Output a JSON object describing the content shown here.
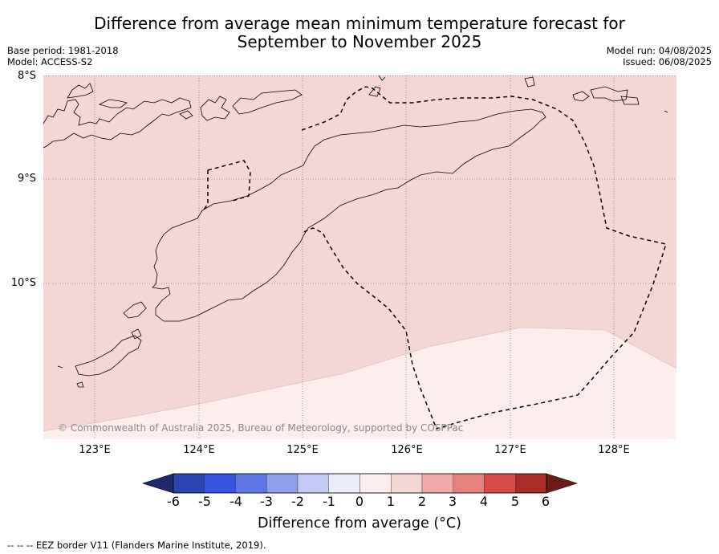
{
  "title_line1": "Difference from average mean minimum temperature forecast for",
  "title_line2": "September to November 2025",
  "base_period": "Base period: 1981-2018",
  "model": "Model: ACCESS-S2",
  "model_run": "Model run: 04/08/2025",
  "issued": "Issued: 06/08/2025",
  "lat_labels": [
    "8°S",
    "9°S",
    "10°S"
  ],
  "lon_labels": [
    "123°E",
    "124°E",
    "125°E",
    "126°E",
    "127°E",
    "128°E"
  ],
  "copyright": "© Commonwealth of Australia 2025, Bureau of Meteorology, supported by COSPPac",
  "colorbar": {
    "title": "Difference from average (°C)",
    "ticks": [
      "-6",
      "-5",
      "-4",
      "-3",
      "-2",
      "-1",
      "0",
      "1",
      "2",
      "3",
      "4",
      "5",
      "6"
    ],
    "colors": [
      "#1f2a6e",
      "#2a44b2",
      "#3353e0",
      "#5d78e6",
      "#8da0ec",
      "#c3cbf4",
      "#e9ecfb",
      "#fdeeed",
      "#f6d6d5",
      "#efaaa8",
      "#e5817d",
      "#d84a45",
      "#a92e28",
      "#6e1b18"
    ]
  },
  "map_fill": {
    "band_0_1_color": "#fdeeed",
    "band_1_2_color": "#f6d6d5",
    "ocean_value_north": "1 to 2",
    "ocean_value_south": "0 to 1"
  },
  "footnote": "--  --  -- EEZ border V11 (Flanders Marine Institute, 2019)."
}
